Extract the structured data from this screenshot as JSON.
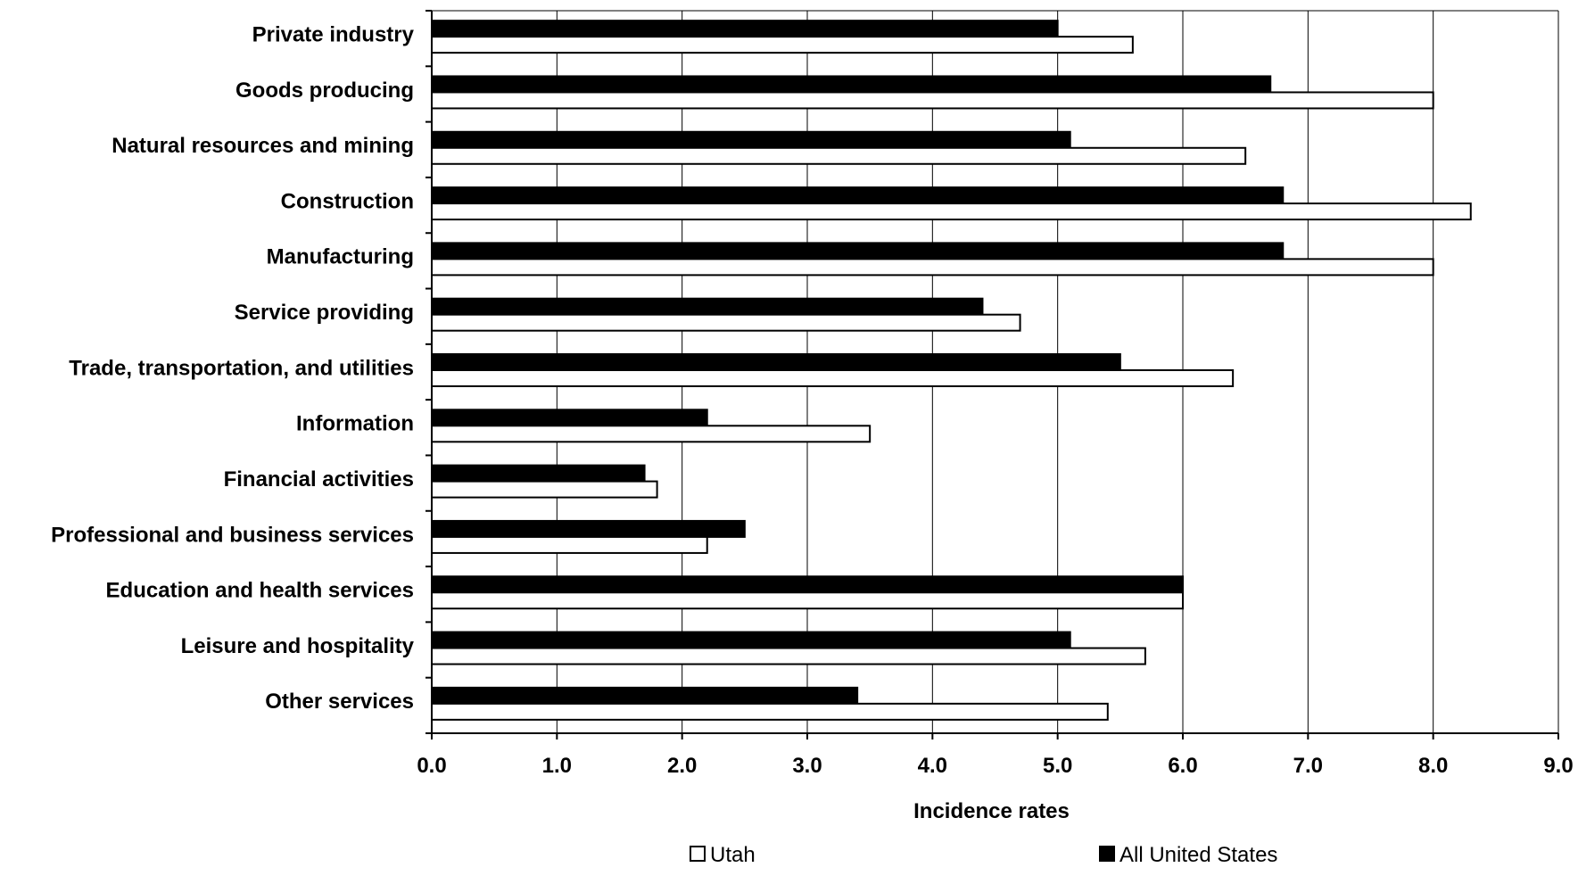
{
  "chart_data": {
    "type": "bar",
    "orientation": "horizontal",
    "categories": [
      "Private industry",
      "Goods producing",
      "Natural resources and mining",
      "Construction",
      "Manufacturing",
      "Service providing",
      "Trade, transportation, and utilities",
      "Information",
      "Financial activities",
      "Professional and business services",
      "Education and health services",
      "Leisure and hospitality",
      "Other services"
    ],
    "series": [
      {
        "name": "All United States",
        "color": "#000000",
        "values": [
          5.0,
          6.7,
          5.1,
          6.8,
          6.8,
          4.4,
          5.5,
          2.2,
          1.7,
          2.5,
          6.0,
          5.1,
          3.4
        ]
      },
      {
        "name": "Utah",
        "color": "#ffffff",
        "values": [
          5.6,
          8.0,
          6.5,
          8.3,
          8.0,
          4.7,
          6.4,
          3.5,
          1.8,
          2.2,
          6.0,
          5.7,
          5.4
        ]
      }
    ],
    "xlabel": "Incidence rates",
    "xlim": [
      0,
      9
    ],
    "xticks": [
      "0.0",
      "1.0",
      "2.0",
      "3.0",
      "4.0",
      "5.0",
      "6.0",
      "7.0",
      "8.0",
      "9.0"
    ],
    "grid": "vertical",
    "legend": {
      "position": "bottom",
      "entries": [
        "Utah",
        "All United States"
      ]
    }
  }
}
